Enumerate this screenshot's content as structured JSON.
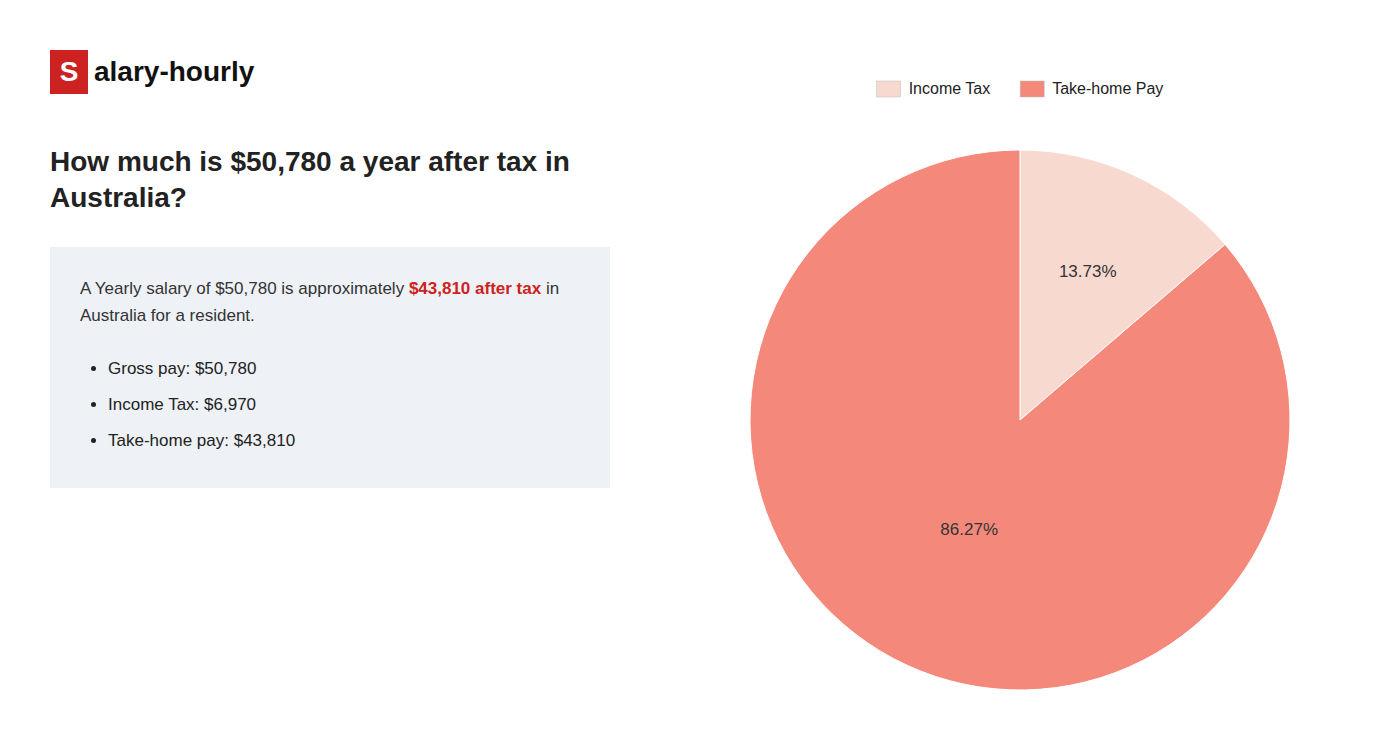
{
  "chart_data": {
    "type": "pie",
    "title": "How much is $50,780 a year after tax in Australia?",
    "categories": [
      "Income Tax",
      "Take-home Pay"
    ],
    "values": [
      13.73,
      86.27
    ],
    "value_labels": [
      "13.73%",
      "86.27%"
    ],
    "colors": [
      "#f7d9d0",
      "#f4897b"
    ],
    "data_labels": true,
    "legend": "top",
    "annotations": [
      {
        "text": "S",
        "color": "#cc2222"
      },
      {
        "text": "alary-hourly"
      },
      {
        "text": "A Yearly salary of $50,780 is approximately "
      },
      {
        "text": "$43,810 after tax",
        "color": "#cc2222"
      },
      {
        "text": " in"
      },
      {
        "text": "Australia for a resident."
      },
      {
        "text": "Gross pay: $50,780"
      },
      {
        "text": "Income Tax: $6,970"
      },
      {
        "text": "Take-home pay: $43,810"
      }
    ]
  }
}
